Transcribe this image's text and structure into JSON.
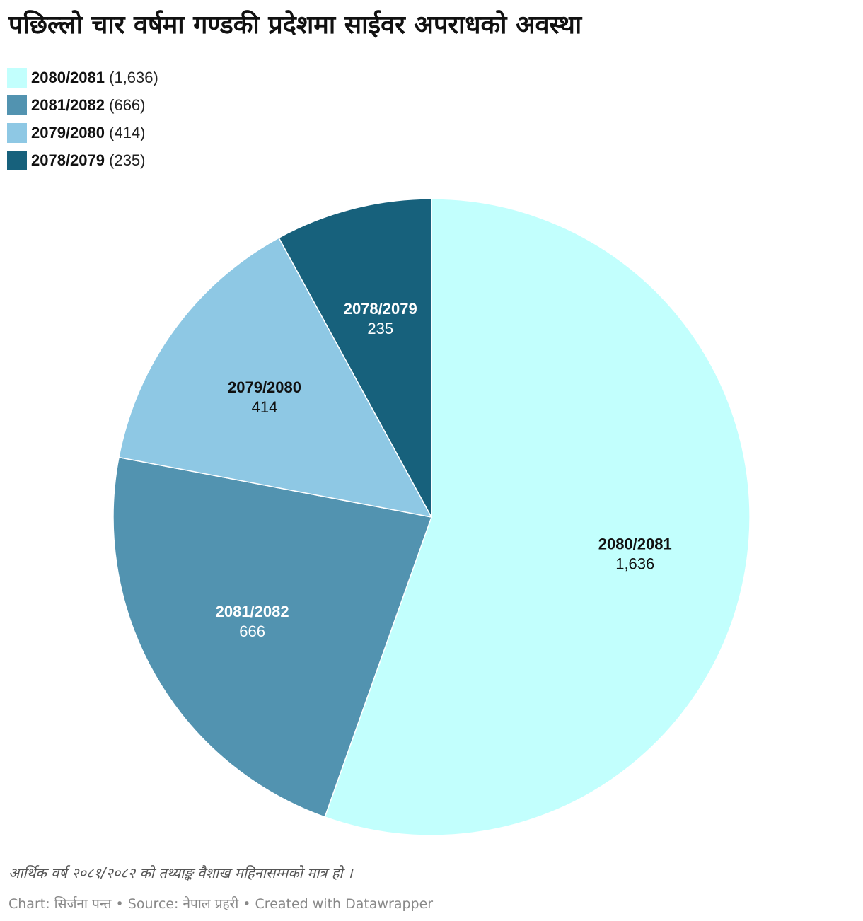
{
  "chart_data": {
    "type": "pie",
    "title": "पछिल्लो चार वर्षमा गण्डकी प्रदेशमा साईवर अपराधको अवस्था",
    "slices": [
      {
        "label": "2080/2081",
        "value": 1636,
        "value_text": "1,636",
        "color": "#c2fffd",
        "text_color": "#111111"
      },
      {
        "label": "2081/2082",
        "value": 666,
        "value_text": "666",
        "color": "#5293b0",
        "text_color": "#ffffff"
      },
      {
        "label": "2079/2080",
        "value": 414,
        "value_text": "414",
        "color": "#8ec8e4",
        "text_color": "#111111"
      },
      {
        "label": "2078/2079",
        "value": 235,
        "value_text": "235",
        "color": "#17617c",
        "text_color": "#ffffff"
      }
    ],
    "legend_placement": "top-left",
    "start_angle": "12 o'clock, clockwise"
  },
  "note": "आर्थिक वर्ष २०८१/२०८२ को तथ्याङ्क वैशाख महिनासम्मको मात्र हो ।",
  "credit": "Chart: सिर्जना पन्त • Source: नेपाल प्रहरी • Created with Datawrapper"
}
